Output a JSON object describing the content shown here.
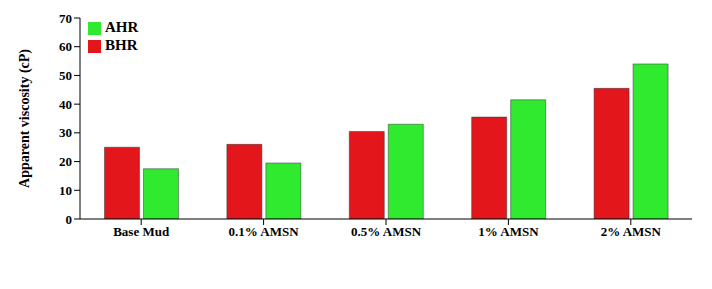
{
  "chart_data": {
    "type": "bar",
    "categories": [
      "Base Mud",
      "0.1% AMSN",
      "0.5% AMSN",
      "1% AMSN",
      "2% AMSN"
    ],
    "series": [
      {
        "name": "BHR",
        "color": "#e3161b",
        "values": [
          25,
          26,
          30.5,
          35.5,
          45.5
        ]
      },
      {
        "name": "AHR",
        "color": "#2fea2f",
        "values": [
          17.5,
          19.5,
          33,
          41.5,
          54
        ]
      }
    ],
    "y_label": "Apparent viscosity (cP)",
    "ylim": [
      0,
      70
    ],
    "yticks": [
      0,
      10,
      20,
      30,
      40,
      50,
      60,
      70
    ],
    "grid": false,
    "legend": "upper left"
  }
}
